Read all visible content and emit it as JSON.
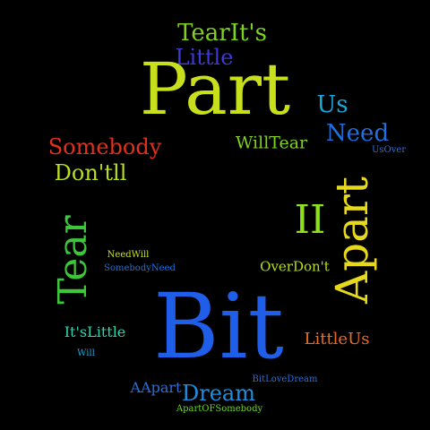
{
  "word_cloud": {
    "background": "#000000",
    "words": [
      {
        "id": "tearits",
        "text": "TearIt's",
        "color": "#7ed321"
      },
      {
        "id": "little-top",
        "text": "Little",
        "color": "#3b3bd6"
      },
      {
        "id": "part",
        "text": "Part",
        "color": "#c8e01c"
      },
      {
        "id": "us",
        "text": "Us",
        "color": "#1ea5d8"
      },
      {
        "id": "need",
        "text": "Need",
        "color": "#1e6fe0"
      },
      {
        "id": "usover",
        "text": "UsOver",
        "color": "#2a6fd8"
      },
      {
        "id": "somebody",
        "text": "Somebody",
        "color": "#e0301e"
      },
      {
        "id": "willtear",
        "text": "WillTear",
        "color": "#7ed321"
      },
      {
        "id": "dontll",
        "text": "Don'tll",
        "color": "#b7df1c"
      },
      {
        "id": "apart",
        "text": "Apart",
        "color": "#e6d81c"
      },
      {
        "id": "ii",
        "text": "II",
        "color": "#8ee01c"
      },
      {
        "id": "tear",
        "text": "Tear",
        "color": "#3ec63a"
      },
      {
        "id": "needwill",
        "text": "NeedWill",
        "color": "#c8e01c"
      },
      {
        "id": "somebodyneed",
        "text": "SomebodyNeed",
        "color": "#1e6fe0"
      },
      {
        "id": "overdont",
        "text": "OverDon't",
        "color": "#b7df1c"
      },
      {
        "id": "bit",
        "text": "Bit",
        "color": "#1e5ee8"
      },
      {
        "id": "itslittle",
        "text": "It'sLittle",
        "color": "#2ad8b0"
      },
      {
        "id": "littleus",
        "text": "LittleUs",
        "color": "#f06a1e"
      },
      {
        "id": "will",
        "text": "Will",
        "color": "#1ea5d8"
      },
      {
        "id": "aapart",
        "text": "AApart",
        "color": "#2a6fd8"
      },
      {
        "id": "dream",
        "text": "Dream",
        "color": "#1e8fe0"
      },
      {
        "id": "bitlovedream",
        "text": "BitLoveDream",
        "color": "#2a6fd8"
      },
      {
        "id": "apartofsomebody",
        "text": "ApartOFSomebody",
        "color": "#6ad81e"
      }
    ]
  }
}
